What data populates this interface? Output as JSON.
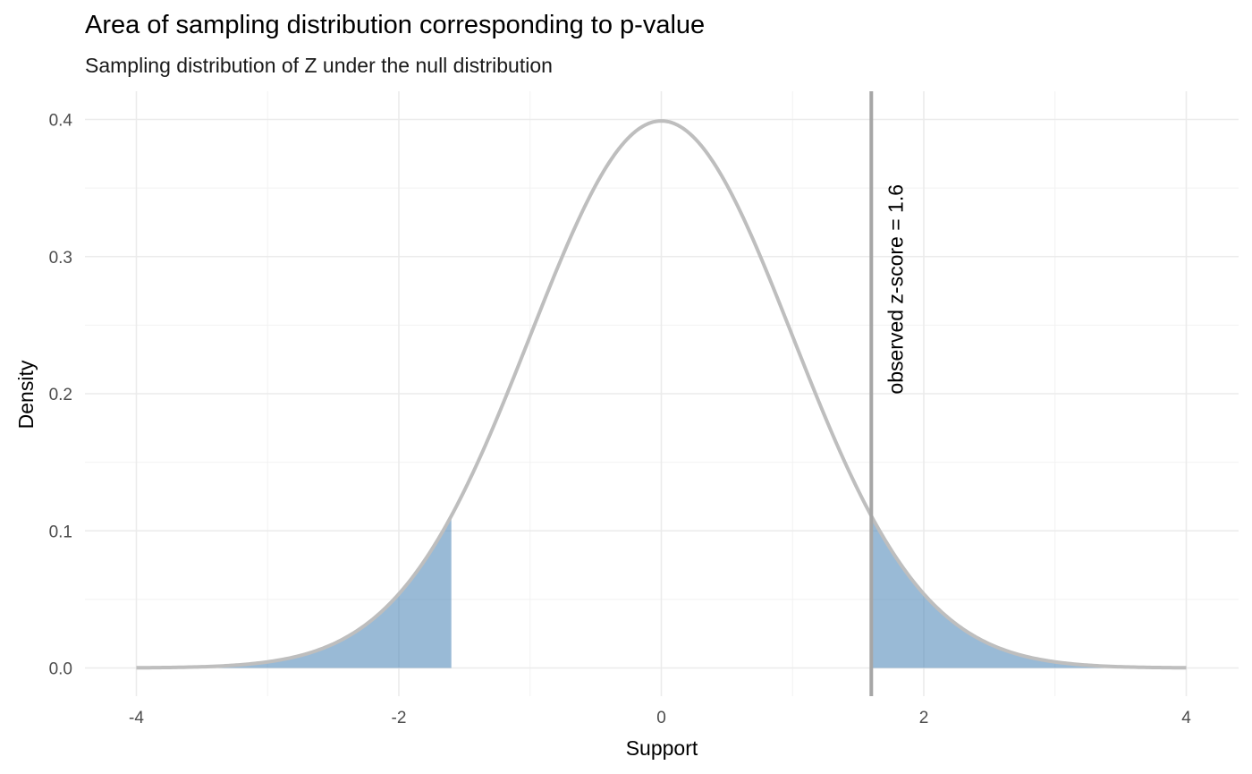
{
  "chart_data": {
    "type": "area",
    "title": "Area of sampling distribution corresponding to p-value",
    "subtitle": "Sampling distribution of Z under the null distribution",
    "xlabel": "Support",
    "ylabel": "Density",
    "xlim": [
      -4,
      4
    ],
    "ylim": [
      0,
      0.4
    ],
    "x_ticks": [
      -4,
      -2,
      0,
      2,
      4
    ],
    "x_tick_labels": [
      "-4",
      "-2",
      "0",
      "2",
      "4"
    ],
    "y_ticks": [
      0,
      0.1,
      0.2,
      0.3,
      0.4
    ],
    "y_tick_labels": [
      "0.0",
      "0.1",
      "0.2",
      "0.3",
      "0.4"
    ],
    "grid": true,
    "curve": {
      "distribution": "standard normal density",
      "x": [
        -4,
        -3.5,
        -3,
        -2.5,
        -2,
        -1.6,
        -1.5,
        -1,
        -0.5,
        0,
        0.5,
        1,
        1.5,
        1.6,
        2,
        2.5,
        3,
        3.5,
        4
      ],
      "y": [
        0.0001,
        0.0009,
        0.0044,
        0.0175,
        0.054,
        0.1109,
        0.1295,
        0.242,
        0.3521,
        0.3989,
        0.3521,
        0.242,
        0.1295,
        0.1109,
        0.054,
        0.0175,
        0.0044,
        0.0009,
        0.0001
      ],
      "color": "#bebebe"
    },
    "shaded_regions": [
      {
        "from": -4,
        "to": -1.6,
        "color": "#4682b4"
      },
      {
        "from": 1.6,
        "to": 4,
        "color": "#4682b4"
      }
    ],
    "vline": {
      "x": 1.6,
      "color": "#a6a6a6",
      "label": "observed z-score = 1.6"
    }
  }
}
